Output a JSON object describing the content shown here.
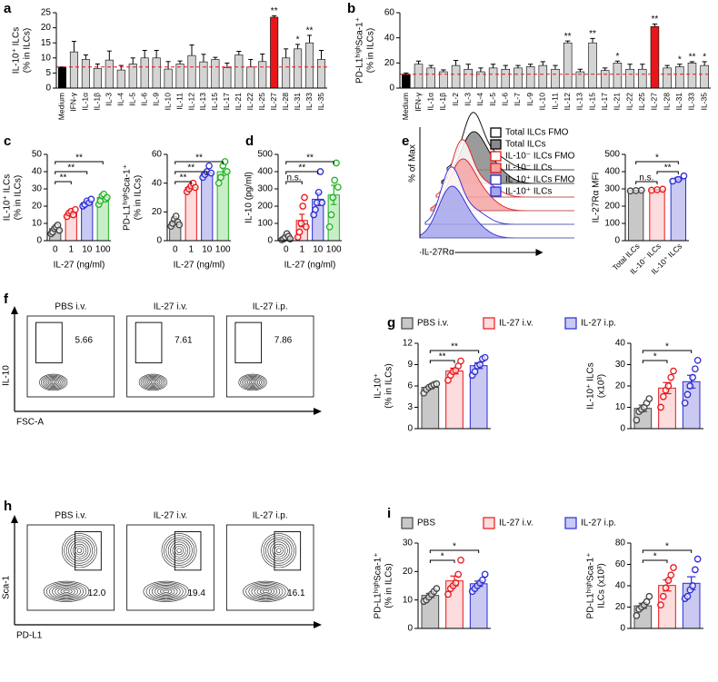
{
  "chart_data": [
    {
      "type": "bar",
      "panel": "a",
      "ylabel": [
        "IL-10⁺ ILCs",
        "(% in ILCs)"
      ],
      "categories": [
        "Medium",
        "IFN-γ",
        "IL-1α",
        "IL-1β",
        "IL-3",
        "IL-4",
        "IL-5",
        "IL-6",
        "IL-9",
        "IL-10",
        "IL-11",
        "IL-12",
        "IL-13",
        "IL-15",
        "IL-17",
        "IL-21",
        "IL-22",
        "IL-25",
        "IL-27",
        "IL-28",
        "IL-31",
        "IL-33",
        "IL-35"
      ],
      "values": [
        7,
        12,
        9.5,
        6.5,
        9.3,
        6,
        8,
        10,
        10,
        6.3,
        8,
        10.8,
        8.7,
        9.5,
        6.8,
        11,
        7,
        8.8,
        23.5,
        10,
        13,
        15,
        9.5
      ],
      "errors": [
        0,
        3.5,
        1.5,
        1.5,
        3,
        1.5,
        2,
        2.5,
        2.5,
        2.5,
        1,
        3.5,
        2.5,
        0.7,
        1.5,
        1.2,
        2.5,
        2.5,
        0.5,
        3,
        1.5,
        2.5,
        3
      ],
      "colors": [
        "#000000",
        "#d4d4d4",
        "#d4d4d4",
        "#d4d4d4",
        "#d4d4d4",
        "#d4d4d4",
        "#d4d4d4",
        "#d4d4d4",
        "#d4d4d4",
        "#d4d4d4",
        "#d4d4d4",
        "#d4d4d4",
        "#d4d4d4",
        "#d4d4d4",
        "#d4d4d4",
        "#d4d4d4",
        "#d4d4d4",
        "#d4d4d4",
        "#e8161b",
        "#d4d4d4",
        "#d4d4d4",
        "#d4d4d4",
        "#d4d4d4"
      ],
      "significance": [
        null,
        null,
        null,
        null,
        null,
        null,
        null,
        null,
        null,
        null,
        null,
        null,
        null,
        null,
        null,
        null,
        null,
        null,
        "**",
        null,
        "*",
        "**",
        null
      ],
      "reference_line": {
        "value": 7,
        "color": "#e8161b"
      },
      "ylim": [
        0,
        25
      ],
      "yticks": [
        0,
        5,
        10,
        15,
        20,
        25
      ]
    },
    {
      "type": "bar",
      "panel": "b",
      "ylabel": [
        "PD-L1ʰⁱᵍʰSca-1⁺",
        "(% in ILCs)"
      ],
      "categories": [
        "Medium",
        "IFN-γ",
        "IL-1α",
        "IL-1β",
        "IL-2",
        "IL-3",
        "IL-4",
        "IL-5",
        "IL-6",
        "IL-7",
        "IL-9",
        "IL-10",
        "IL-11",
        "IL-12",
        "IL-13",
        "IL-15",
        "IL-17",
        "IL-21",
        "IL-22",
        "IL-25",
        "IL-27",
        "IL-28",
        "IL-31",
        "IL-33",
        "IL-35"
      ],
      "values": [
        11,
        19,
        16,
        13,
        18,
        15,
        13,
        16,
        15,
        16,
        17,
        18,
        15,
        36,
        13,
        36,
        14,
        20,
        15,
        15,
        49,
        16,
        17,
        20,
        18
      ],
      "errors": [
        1,
        2.5,
        2,
        1.5,
        4,
        4,
        3,
        3,
        3,
        2,
        2,
        3,
        3,
        1.5,
        2,
        3.5,
        2,
        1.5,
        4,
        4,
        2,
        2,
        2,
        1,
        3
      ],
      "colors": [
        "#000000",
        "#d4d4d4",
        "#d4d4d4",
        "#d4d4d4",
        "#d4d4d4",
        "#d4d4d4",
        "#d4d4d4",
        "#d4d4d4",
        "#d4d4d4",
        "#d4d4d4",
        "#d4d4d4",
        "#d4d4d4",
        "#d4d4d4",
        "#d4d4d4",
        "#d4d4d4",
        "#d4d4d4",
        "#d4d4d4",
        "#d4d4d4",
        "#d4d4d4",
        "#d4d4d4",
        "#e8161b",
        "#d4d4d4",
        "#d4d4d4",
        "#d4d4d4",
        "#d4d4d4"
      ],
      "significance": [
        null,
        null,
        null,
        null,
        null,
        null,
        null,
        null,
        null,
        null,
        null,
        null,
        null,
        "**",
        null,
        "**",
        null,
        "*",
        null,
        null,
        "**",
        null,
        "*",
        "**",
        "*"
      ],
      "reference_line": {
        "value": 11,
        "color": "#e8161b"
      },
      "ylim": [
        0,
        60
      ],
      "yticks": [
        0,
        20,
        40,
        60
      ]
    },
    {
      "type": "dot_bar",
      "panel": "c",
      "ylabel": [
        "IL-10⁺ ILCs",
        "(% in ILCs)"
      ],
      "xlabel": "IL-27 (ng/ml)",
      "category_labels": "axis",
      "categories": [
        "0",
        "1",
        "10",
        "100"
      ],
      "values": [
        7,
        16,
        22,
        25
      ],
      "errors": [
        0.8,
        0.7,
        0.7,
        0.9
      ],
      "points": [
        [
          4,
          5,
          7,
          8,
          9,
          6
        ],
        [
          14,
          16,
          17,
          15,
          18
        ],
        [
          20,
          21,
          23,
          22,
          24
        ],
        [
          21,
          23,
          26,
          27,
          24,
          25
        ]
      ],
      "colors": [
        "#444444",
        "#e8161b",
        "#2b2bd6",
        "#22b322"
      ],
      "fills": [
        "#c8c8c8",
        "#fcdcdc",
        "#c9c9f2",
        "#c8eec8"
      ],
      "brackets": [
        {
          "from": "0",
          "to": "1",
          "label": "**"
        },
        {
          "from": "0",
          "to": "10",
          "label": "**"
        },
        {
          "from": "0",
          "to": "100",
          "label": "**"
        }
      ],
      "ylim": [
        0,
        50
      ],
      "yticks": [
        0,
        10,
        20,
        30,
        40,
        50
      ]
    },
    {
      "type": "dot_bar",
      "ylabel": [
        "PD-L1ʰⁱᵍʰSca-1⁺",
        "(% in ILCs)"
      ],
      "xlabel": "IL-27 (ng/ml)",
      "category_labels": "axis",
      "categories": [
        "0",
        "1",
        "10",
        "100"
      ],
      "values": [
        13,
        37,
        47,
        48
      ],
      "errors": [
        1.1,
        1.0,
        1.3,
        2.7
      ],
      "points": [
        [
          10,
          12,
          15,
          17,
          13,
          11
        ],
        [
          34,
          36,
          38,
          40,
          37
        ],
        [
          44,
          46,
          48,
          52,
          47
        ],
        [
          40,
          44,
          52,
          55,
          48
        ]
      ],
      "colors": [
        "#444444",
        "#e8161b",
        "#2b2bd6",
        "#22b322"
      ],
      "fills": [
        "#c8c8c8",
        "#fcdcdc",
        "#c9c9f2",
        "#c8eec8"
      ],
      "brackets": [
        {
          "from": "0",
          "to": "1",
          "label": "**"
        },
        {
          "from": "0",
          "to": "10",
          "label": "**"
        },
        {
          "from": "0",
          "to": "100",
          "label": "**"
        }
      ],
      "ylim": [
        0,
        60
      ],
      "yticks": [
        0,
        20,
        40,
        60
      ]
    },
    {
      "type": "dot_bar",
      "panel": "d",
      "ylabel": [
        "IL-10 (pg/ml)"
      ],
      "xlabel": "IL-27 (ng/ml)",
      "category_labels": "axis",
      "categories": [
        "0",
        "1",
        "10",
        "100"
      ],
      "values": [
        18,
        117,
        240,
        265
      ],
      "errors": [
        6,
        36,
        36,
        56
      ],
      "points": [
        [
          5,
          10,
          20,
          40,
          25,
          10
        ],
        [
          20,
          50,
          100,
          200,
          250,
          80
        ],
        [
          150,
          180,
          220,
          280,
          400,
          220
        ],
        [
          80,
          150,
          250,
          350,
          450,
          310
        ]
      ],
      "colors": [
        "#444444",
        "#e8161b",
        "#2b2bd6",
        "#22b322"
      ],
      "fills": [
        "#c8c8c8",
        "#fcdcdc",
        "#c9c9f2",
        "#c8eec8"
      ],
      "brackets": [
        {
          "from": "0",
          "to": "1",
          "label": "n.s."
        },
        {
          "from": "0",
          "to": "10",
          "label": "**"
        },
        {
          "from": "0",
          "to": "100",
          "label": "**"
        }
      ],
      "ylim": [
        0,
        500
      ],
      "yticks": [
        0,
        100,
        200,
        300,
        400,
        500
      ]
    },
    {
      "type": "flow_histogram",
      "panel": "e",
      "ylabel": "% of Max",
      "xlabel": "IL-27Rα",
      "series": [
        {
          "name": "Total ILCs FMO",
          "color": "#000000",
          "fill": "#ffffff"
        },
        {
          "name": "Total ILCs",
          "color": "#000000",
          "fill": "#8a8a8a"
        },
        {
          "name": "IL-10⁻ ILCs FMO",
          "color": "#e8161b",
          "fill": "#ffffff"
        },
        {
          "name": "IL-10⁻ ILCs",
          "color": "#e8161b",
          "fill": "#f4a3a3"
        },
        {
          "name": "IL-10⁺ ILCs FMO",
          "color": "#2b2bd6",
          "fill": "#ffffff"
        },
        {
          "name": "IL-10⁺ ILCs",
          "color": "#2b2bd6",
          "fill": "#a5a5ec"
        }
      ]
    },
    {
      "type": "dot_bar",
      "ylabel": [
        "IL-27Rα MFI"
      ],
      "category_labels": "rotated",
      "categories": [
        "Total ILCs",
        "IL-10⁻ ILCs",
        "IL-10⁺ ILCs"
      ],
      "values": [
        290,
        295,
        358
      ],
      "errors": [
        1.2,
        1.7,
        8.7
      ],
      "points": [
        [
          288,
          290,
          292
        ],
        [
          292,
          295,
          298
        ],
        [
          345,
          355,
          375
        ]
      ],
      "colors": [
        "#444444",
        "#e8161b",
        "#2b2bd6"
      ],
      "fills": [
        "#c8c8c8",
        "#fcdcdc",
        "#c9c9f2"
      ],
      "brackets": [
        {
          "from": "Total ILCs",
          "to": "IL-10⁻ ILCs",
          "label": "n.s."
        },
        {
          "from": "IL-10⁻ ILCs",
          "to": "IL-10⁺ ILCs",
          "label": "**"
        },
        {
          "from": "Total ILCs",
          "to": "IL-10⁺ ILCs",
          "label": "*"
        }
      ],
      "ylim": [
        0,
        500
      ],
      "yticks": [
        0,
        100,
        200,
        300,
        400,
        500
      ]
    },
    {
      "type": "flow_contour",
      "panel": "f",
      "xlabel": "FSC-A",
      "ylabel": "IL-10",
      "plots": [
        {
          "title": "PBS i.v.",
          "gate_value": 5.66
        },
        {
          "title": "IL-27 i.v.",
          "gate_value": 7.61
        },
        {
          "title": "IL-27 i.p.",
          "gate_value": 7.86
        }
      ]
    },
    {
      "type": "dot_bar",
      "panel": "g",
      "ylabel": [
        "IL-10⁺",
        "(% in ILCs)"
      ],
      "category_labels": "legend",
      "categories": [
        "PBS i.v.",
        "IL-27 i.v.",
        "IL-27 i.p."
      ],
      "values": [
        5.8,
        8.1,
        8.85
      ],
      "errors": [
        0.2,
        0.4,
        0.4
      ],
      "points": [
        [
          5,
          5.5,
          5.8,
          6,
          6.2,
          6.3
        ],
        [
          6.8,
          7.5,
          8,
          8.2,
          8.8,
          9.5
        ],
        [
          7.5,
          8,
          8.8,
          9,
          9.8,
          10
        ]
      ],
      "colors": [
        "#444444",
        "#e8161b",
        "#2b2bd6"
      ],
      "fills": [
        "#c8c8c8",
        "#fcdcdc",
        "#c9c9f2"
      ],
      "brackets": [
        {
          "from": "PBS i.v.",
          "to": "IL-27 i.v.",
          "label": "**"
        },
        {
          "from": "PBS i.v.",
          "to": "IL-27 i.p.",
          "label": "**"
        }
      ],
      "ylim": [
        0,
        12
      ],
      "yticks": [
        0,
        3,
        6,
        9,
        12
      ]
    },
    {
      "type": "dot_bar",
      "ylabel": [
        "IL-10⁺ ILCs",
        "(x10³)"
      ],
      "category_labels": "none",
      "categories": [
        "PBS i.v.",
        "IL-27 i.v.",
        "IL-27 i.p."
      ],
      "values": [
        9.5,
        19,
        22
      ],
      "errors": [
        1.5,
        2.6,
        3
      ],
      "points": [
        [
          4,
          8,
          9,
          10,
          12,
          14
        ],
        [
          10,
          15,
          18,
          20,
          24,
          27
        ],
        [
          12,
          16,
          20,
          24,
          28,
          32
        ]
      ],
      "colors": [
        "#444444",
        "#e8161b",
        "#2b2bd6"
      ],
      "fills": [
        "#c8c8c8",
        "#fcdcdc",
        "#c9c9f2"
      ],
      "brackets": [
        {
          "from": "PBS i.v.",
          "to": "IL-27 i.v.",
          "label": "*"
        },
        {
          "from": "PBS i.v.",
          "to": "IL-27 i.p.",
          "label": "*"
        }
      ],
      "ylim": [
        0,
        40
      ],
      "yticks": [
        0,
        10,
        20,
        30,
        40
      ]
    },
    {
      "type": "flow_contour",
      "panel": "h",
      "xlabel": "PD-L1",
      "ylabel": "Sca-1",
      "plots": [
        {
          "title": "PBS i.v.",
          "gate_value": 12,
          "gate_label": "12.0"
        },
        {
          "title": "IL-27 i.v.",
          "gate_value": 19.4
        },
        {
          "title": "IL-27 i.p.",
          "gate_value": 16.1
        }
      ]
    },
    {
      "type": "dot_bar",
      "panel": "i",
      "ylabel": [
        "PD-L1ʰⁱᵍʰSca-1⁺",
        "(% in ILCs)"
      ],
      "category_labels": "legend",
      "categories": [
        "PBS",
        "IL-27 i.v.",
        "IL-27 i.p."
      ],
      "values": [
        11.6,
        16.7,
        15.7
      ],
      "errors": [
        0.7,
        1.7,
        0.9
      ],
      "points": [
        [
          9.5,
          10,
          11,
          12,
          13,
          14
        ],
        [
          12,
          14,
          15,
          16,
          19,
          24
        ],
        [
          13,
          14,
          15,
          16,
          17,
          19
        ]
      ],
      "colors": [
        "#444444",
        "#e8161b",
        "#2b2bd6"
      ],
      "fills": [
        "#c8c8c8",
        "#fcdcdc",
        "#c9c9f2"
      ],
      "brackets": [
        {
          "from": "PBS",
          "to": "IL-27 i.v.",
          "label": "*"
        },
        {
          "from": "PBS",
          "to": "IL-27 i.p.",
          "label": "*"
        }
      ],
      "ylim": [
        0,
        30
      ],
      "yticks": [
        0,
        10,
        20,
        30
      ]
    },
    {
      "type": "dot_bar",
      "ylabel": [
        "PD-L1ʰⁱᵍʰSca-1⁺",
        "ILCs (x10³)"
      ],
      "category_labels": "none",
      "categories": [
        "PBS",
        "IL-27 i.v.",
        "IL-27 i.p."
      ],
      "values": [
        21.2,
        40.3,
        42.3
      ],
      "errors": [
        2.4,
        5.2,
        6.1
      ],
      "points": [
        [
          12,
          18,
          20,
          22,
          25,
          30
        ],
        [
          22,
          30,
          38,
          45,
          50,
          57
        ],
        [
          28,
          30,
          36,
          40,
          55,
          65
        ]
      ],
      "colors": [
        "#444444",
        "#e8161b",
        "#2b2bd6"
      ],
      "fills": [
        "#c8c8c8",
        "#fcdcdc",
        "#c9c9f2"
      ],
      "brackets": [
        {
          "from": "PBS",
          "to": "IL-27 i.v.",
          "label": "*"
        },
        {
          "from": "PBS",
          "to": "IL-27 i.p.",
          "label": "*"
        }
      ],
      "ylim": [
        0,
        80
      ],
      "yticks": [
        0,
        20,
        40,
        60,
        80
      ]
    }
  ]
}
